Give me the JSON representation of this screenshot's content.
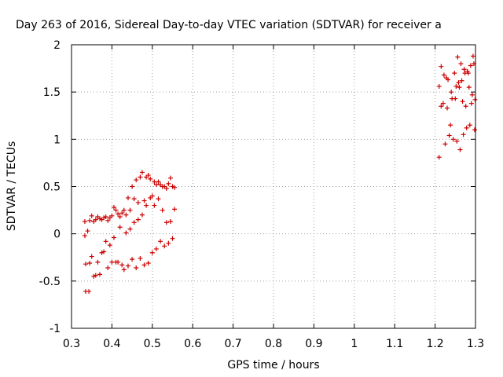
{
  "chart_data": {
    "type": "scatter",
    "title": "Day 263 of 2016, Sidereal Day-to-day VTEC variation (SDTVAR) for receiver a",
    "xlabel": "GPS time / hours",
    "ylabel": "SDTVAR / TECUs",
    "xlim": [
      0.3,
      1.3
    ],
    "ylim": [
      -1,
      2
    ],
    "xticks": [
      "0.3",
      "0.4",
      "0.5",
      "0.6",
      "0.7",
      "0.8",
      "0.9",
      "1",
      "1.1",
      "1.2",
      "1.3"
    ],
    "yticks": [
      "-1",
      "-0.5",
      "0",
      "0.5",
      "1",
      "1.5",
      "2"
    ],
    "grid": true,
    "marker": "+",
    "color": "#cc0000",
    "series": [
      {
        "points": [
          [
            0.333,
            -0.02
          ],
          [
            0.34,
            0.03
          ],
          [
            0.333,
            0.13
          ],
          [
            0.345,
            0.14
          ],
          [
            0.35,
            0.19
          ],
          [
            0.355,
            0.13
          ],
          [
            0.36,
            0.15
          ],
          [
            0.365,
            0.18
          ],
          [
            0.37,
            0.16
          ],
          [
            0.375,
            0.15
          ],
          [
            0.38,
            0.17
          ],
          [
            0.385,
            0.18
          ],
          [
            0.39,
            0.14
          ],
          [
            0.395,
            0.17
          ],
          [
            0.4,
            0.19
          ],
          [
            0.405,
            0.28
          ],
          [
            0.41,
            0.25
          ],
          [
            0.415,
            0.21
          ],
          [
            0.42,
            0.18
          ],
          [
            0.425,
            0.22
          ],
          [
            0.43,
            0.25
          ],
          [
            0.435,
            0.2
          ],
          [
            0.44,
            0.38
          ],
          [
            0.445,
            0.25
          ],
          [
            0.45,
            0.5
          ],
          [
            0.455,
            0.37
          ],
          [
            0.46,
            0.57
          ],
          [
            0.465,
            0.33
          ],
          [
            0.47,
            0.6
          ],
          [
            0.475,
            0.65
          ],
          [
            0.48,
            0.35
          ],
          [
            0.485,
            0.6
          ],
          [
            0.49,
            0.62
          ],
          [
            0.495,
            0.58
          ],
          [
            0.5,
            0.4
          ],
          [
            0.505,
            0.55
          ],
          [
            0.51,
            0.52
          ],
          [
            0.515,
            0.55
          ],
          [
            0.52,
            0.52
          ],
          [
            0.525,
            0.5
          ],
          [
            0.53,
            0.5
          ],
          [
            0.535,
            0.48
          ],
          [
            0.54,
            0.53
          ],
          [
            0.545,
            0.59
          ],
          [
            0.55,
            0.5
          ],
          [
            0.555,
            0.49
          ]
        ]
      },
      {
        "points": [
          [
            0.335,
            -0.61
          ],
          [
            0.343,
            -0.61
          ],
          [
            0.335,
            -0.32
          ],
          [
            0.345,
            -0.31
          ],
          [
            0.35,
            -0.24
          ],
          [
            0.355,
            -0.45
          ],
          [
            0.36,
            -0.44
          ],
          [
            0.365,
            -0.3
          ],
          [
            0.37,
            -0.43
          ],
          [
            0.375,
            -0.2
          ],
          [
            0.38,
            -0.19
          ],
          [
            0.385,
            -0.08
          ],
          [
            0.39,
            -0.36
          ],
          [
            0.395,
            -0.12
          ],
          [
            0.4,
            -0.3
          ],
          [
            0.405,
            -0.04
          ],
          [
            0.41,
            -0.3
          ],
          [
            0.415,
            -0.3
          ],
          [
            0.42,
            0.07
          ],
          [
            0.425,
            -0.33
          ],
          [
            0.43,
            -0.38
          ],
          [
            0.435,
            0.01
          ],
          [
            0.44,
            -0.34
          ],
          [
            0.445,
            0.05
          ],
          [
            0.45,
            -0.27
          ],
          [
            0.455,
            0.12
          ],
          [
            0.46,
            -0.36
          ],
          [
            0.465,
            0.15
          ],
          [
            0.47,
            -0.26
          ],
          [
            0.475,
            0.2
          ],
          [
            0.48,
            -0.33
          ],
          [
            0.485,
            0.3
          ],
          [
            0.49,
            -0.31
          ],
          [
            0.495,
            0.38
          ],
          [
            0.5,
            -0.2
          ],
          [
            0.505,
            0.3
          ],
          [
            0.51,
            -0.16
          ],
          [
            0.515,
            0.37
          ],
          [
            0.52,
            -0.08
          ],
          [
            0.525,
            0.25
          ],
          [
            0.53,
            -0.13
          ],
          [
            0.535,
            0.12
          ],
          [
            0.54,
            -0.1
          ],
          [
            0.545,
            0.13
          ],
          [
            0.55,
            -0.05
          ],
          [
            0.555,
            0.26
          ]
        ]
      },
      {
        "points": [
          [
            1.21,
            0.81
          ],
          [
            1.215,
            1.35
          ],
          [
            1.21,
            1.56
          ],
          [
            1.215,
            1.77
          ],
          [
            1.22,
            1.38
          ],
          [
            1.222,
            1.68
          ],
          [
            1.225,
            0.95
          ],
          [
            1.228,
            1.65
          ],
          [
            1.23,
            1.33
          ],
          [
            1.232,
            1.63
          ],
          [
            1.235,
            1.04
          ],
          [
            1.238,
            1.15
          ],
          [
            1.24,
            1.5
          ],
          [
            1.242,
            1.43
          ],
          [
            1.245,
            1.0
          ],
          [
            1.248,
            1.7
          ],
          [
            1.25,
            1.43
          ],
          [
            1.252,
            1.56
          ],
          [
            1.254,
            0.98
          ],
          [
            1.256,
            1.87
          ],
          [
            1.258,
            1.6
          ],
          [
            1.26,
            1.55
          ],
          [
            1.262,
            0.89
          ],
          [
            1.264,
            1.8
          ],
          [
            1.266,
            1.62
          ],
          [
            1.268,
            1.4
          ],
          [
            1.27,
            1.05
          ],
          [
            1.272,
            1.74
          ],
          [
            1.274,
            1.7
          ],
          [
            1.276,
            1.35
          ],
          [
            1.278,
            1.12
          ],
          [
            1.28,
            1.72
          ],
          [
            1.282,
            1.7
          ],
          [
            1.284,
            1.55
          ],
          [
            1.286,
            1.15
          ],
          [
            1.288,
            1.78
          ],
          [
            1.29,
            1.38
          ],
          [
            1.292,
            1.47
          ],
          [
            1.294,
            1.88
          ],
          [
            1.296,
            1.8
          ],
          [
            1.298,
            1.1
          ],
          [
            1.299,
            1.42
          ]
        ]
      }
    ]
  }
}
